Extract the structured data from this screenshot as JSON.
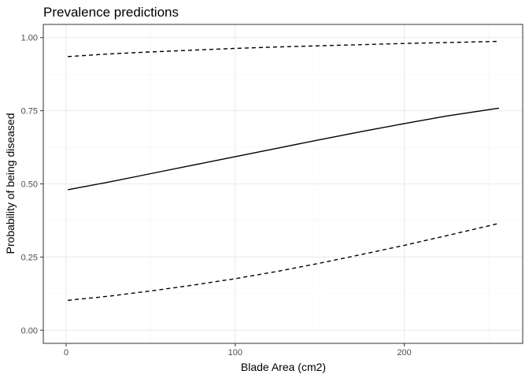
{
  "chart_data": {
    "type": "line",
    "title": "Prevalence predictions",
    "xlabel": "Blade Area (cm2)",
    "ylabel": "Probability of being diseased",
    "xlim": [
      -13.5,
      270
    ],
    "ylim": [
      -0.045,
      1.045
    ],
    "x_ticks": [
      0,
      100,
      200
    ],
    "x_tick_labels": [
      "0",
      "100",
      "200"
    ],
    "y_ticks": [
      0,
      0.25,
      0.5,
      0.75,
      1.0
    ],
    "y_tick_labels": [
      "0.00",
      "0.25",
      "0.50",
      "0.75",
      "1.00"
    ],
    "x_minor_ticks": [
      50,
      150,
      250
    ],
    "y_minor_ticks": [
      0.125,
      0.375,
      0.625,
      0.875
    ],
    "grid": true,
    "colors": {
      "line": "#000000",
      "grid": "#ebebeb",
      "panel_border": "#333333",
      "background": "#ffffff"
    },
    "series": [
      {
        "style": "dashed",
        "x": [
          1,
          25,
          50,
          75,
          100,
          125,
          150,
          175,
          200,
          225,
          256
        ],
        "y": [
          0.935,
          0.944,
          0.951,
          0.957,
          0.963,
          0.968,
          0.972,
          0.976,
          0.98,
          0.983,
          0.987
        ]
      },
      {
        "style": "solid",
        "x": [
          1,
          25,
          50,
          75,
          100,
          125,
          150,
          175,
          200,
          225,
          256
        ],
        "y": [
          0.48,
          0.506,
          0.535,
          0.564,
          0.593,
          0.622,
          0.651,
          0.679,
          0.706,
          0.732,
          0.759
        ]
      },
      {
        "style": "dashed",
        "x": [
          1,
          25,
          50,
          75,
          100,
          125,
          150,
          175,
          200,
          225,
          256
        ],
        "y": [
          0.102,
          0.116,
          0.134,
          0.154,
          0.176,
          0.201,
          0.229,
          0.259,
          0.29,
          0.323,
          0.365
        ]
      }
    ]
  }
}
